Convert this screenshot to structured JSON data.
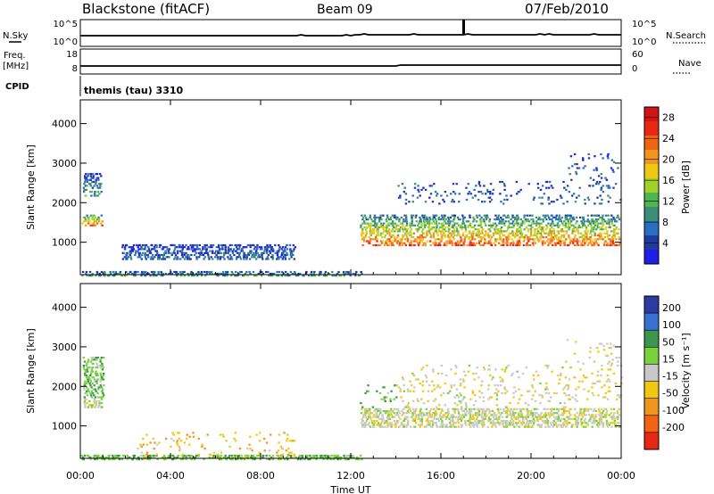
{
  "header": {
    "station": "Blackstone (fitACF)",
    "beam": "Beam 09",
    "date": "07/Feb/2010"
  },
  "strip_labels": {
    "nsky": "N.Sky",
    "nsky_ticks": [
      "10^5",
      "10^0"
    ],
    "nsearch": "N.Search",
    "nsearch_ticks": [
      "10^5",
      "10^0"
    ],
    "freq": "Freq.",
    "freq_unit": "[MHz]",
    "freq_ticks": [
      "18",
      "8"
    ],
    "nave": "Nave",
    "nave_ticks": [
      "60",
      "0"
    ],
    "cpid": "CPID",
    "cpid_text": "themis (tau) 3310"
  },
  "colors": {
    "power": [
      "#1e1ee6",
      "#1e3ca0",
      "#2a6fbf",
      "#3c8c78",
      "#50b450",
      "#a0d228",
      "#f0c814",
      "#f0961e",
      "#f06414",
      "#e62814",
      "#d21414"
    ],
    "velocity_pos": [
      "#2a3ca0",
      "#3c6fd2",
      "#3c9650",
      "#78d23c"
    ],
    "velocity_ground": "#c8c8c8",
    "velocity_neg": [
      "#f0c814",
      "#f0961e",
      "#f06414",
      "#e62814"
    ]
  },
  "chart_data": [
    {
      "type": "heatmap",
      "title": "Power",
      "xlabel": "Time UT",
      "ylabel": "Slant Range [km]",
      "x_ticks": [
        "00:00",
        "04:00",
        "08:00",
        "12:00",
        "16:00",
        "20:00",
        "00:00"
      ],
      "y_ticks": [
        "1000",
        "2000",
        "3000",
        "4000"
      ],
      "xlim_hours": [
        0,
        24
      ],
      "ylim_km": [
        180,
        4600
      ],
      "colorbar_label": "Power [dB]",
      "colorbar_ticks": [
        "28",
        "24",
        "20",
        "16",
        "12",
        "8",
        "4"
      ],
      "colorbar_range": [
        0,
        30
      ],
      "bands": [
        {
          "t0": 0.05,
          "t1": 1.0,
          "r0": 1450,
          "r1": 1750,
          "p0": 22,
          "p1": 8
        },
        {
          "t0": 0.1,
          "t1": 0.9,
          "r0": 2200,
          "r1": 2800,
          "p0": 10,
          "p1": 4
        },
        {
          "t0": 12.4,
          "t1": 23.9,
          "r0": 950,
          "r1": 1750,
          "p0": 24,
          "p1": 6
        },
        {
          "t0": 14.0,
          "t1": 21.5,
          "r0": 2000,
          "r1": 2600,
          "p0": 6,
          "p1": 4
        },
        {
          "t0": 21.5,
          "t1": 24.0,
          "r0": 2000,
          "r1": 3300,
          "p0": 8,
          "p1": 4
        },
        {
          "t0": 0.0,
          "t1": 12.5,
          "r0": 180,
          "r1": 320,
          "p0": 10,
          "p1": 4
        },
        {
          "t0": 1.8,
          "t1": 9.5,
          "r0": 600,
          "r1": 1000,
          "p0": 6,
          "p1": 4
        }
      ]
    },
    {
      "type": "heatmap",
      "title": "Velocity",
      "xlabel": "Time UT",
      "ylabel": "Slant Range [km]",
      "x_ticks": [
        "00:00",
        "04:00",
        "08:00",
        "12:00",
        "16:00",
        "20:00",
        "00:00"
      ],
      "y_ticks": [
        "1000",
        "2000",
        "3000",
        "4000"
      ],
      "xlim_hours": [
        0,
        24
      ],
      "ylim_km": [
        180,
        4600
      ],
      "colorbar_label": "Velocity [m s⁻¹]",
      "colorbar_ticks": [
        "200",
        "100",
        "50",
        "15",
        "-15",
        "-50",
        "-100",
        "-200"
      ],
      "colorbar_range": [
        -250,
        250
      ],
      "bands": [
        {
          "t0": 0.1,
          "t1": 1.0,
          "r0": 1500,
          "r1": 1750,
          "v": 0
        },
        {
          "t0": 0.1,
          "t1": 1.0,
          "r0": 1750,
          "r1": 2800,
          "v": 40
        },
        {
          "t0": 12.4,
          "t1": 23.9,
          "r0": 1000,
          "r1": 1500,
          "v": 0
        },
        {
          "t0": 12.4,
          "t1": 14.0,
          "r0": 1500,
          "r1": 2100,
          "v": 40
        },
        {
          "t0": 14.0,
          "t1": 22.0,
          "r0": 1500,
          "r1": 2600,
          "v": -10
        },
        {
          "t0": 21.5,
          "t1": 24.0,
          "r0": 1700,
          "r1": 3300,
          "v": -20
        },
        {
          "t0": 0.0,
          "t1": 12.5,
          "r0": 180,
          "r1": 320,
          "v": 40
        },
        {
          "t0": 2.5,
          "t1": 9.5,
          "r0": 200,
          "r1": 900,
          "v": -40
        }
      ]
    }
  ]
}
